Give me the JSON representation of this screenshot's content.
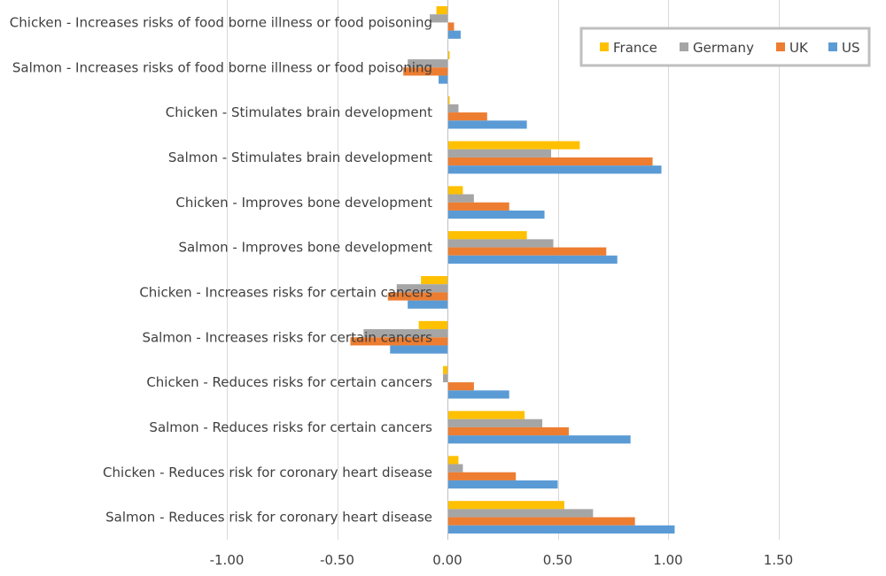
{
  "chart_data": {
    "type": "bar",
    "orientation": "horizontal",
    "categories": [
      "Chicken - Increases risks of food borne illness or food poisoning",
      "Salmon - Increases risks of food borne illness or food poisoning",
      "Chicken - Stimulates brain development",
      "Salmon - Stimulates brain development",
      "Chicken - Improves bone development",
      "Salmon - Improves bone development",
      "Chicken - Increases risks for certain cancers",
      "Salmon - Increases risks for certain cancers",
      "Chicken - Reduces risks for certain cancers",
      "Salmon - Reduces risks for certain cancers",
      "Chicken - Reduces risk for coronary heart disease",
      "Salmon - Reduces risk for coronary heart disease"
    ],
    "series": [
      {
        "name": "France",
        "color": "#ffc000",
        "values": [
          -0.05,
          0.01,
          0.01,
          0.6,
          0.07,
          0.36,
          -0.12,
          -0.13,
          -0.02,
          0.35,
          0.05,
          0.53
        ]
      },
      {
        "name": "Germany",
        "color": "#a5a5a5",
        "values": [
          -0.08,
          -0.18,
          0.05,
          0.47,
          0.12,
          0.48,
          -0.23,
          -0.38,
          -0.02,
          0.43,
          0.07,
          0.66
        ]
      },
      {
        "name": "UK",
        "color": "#ed7d31",
        "values": [
          0.03,
          -0.2,
          0.18,
          0.93,
          0.28,
          0.72,
          -0.27,
          -0.44,
          0.12,
          0.55,
          0.31,
          0.85
        ]
      },
      {
        "name": "US",
        "color": "#5b9bd5",
        "values": [
          0.06,
          -0.04,
          0.36,
          0.97,
          0.44,
          0.77,
          -0.18,
          -0.26,
          0.28,
          0.83,
          0.5,
          1.03
        ]
      }
    ],
    "xlim": [
      -1.0,
      1.5
    ],
    "xticks": [
      "-1.00",
      "-0.50",
      "0.00",
      "0.50",
      "1.00",
      "1.50"
    ],
    "xtick_values": [
      -1.0,
      -0.5,
      0.0,
      0.5,
      1.0,
      1.5
    ],
    "grid": true,
    "legend_position": "top-right",
    "legend_order": [
      "France",
      "Germany",
      "UK",
      "US"
    ]
  }
}
